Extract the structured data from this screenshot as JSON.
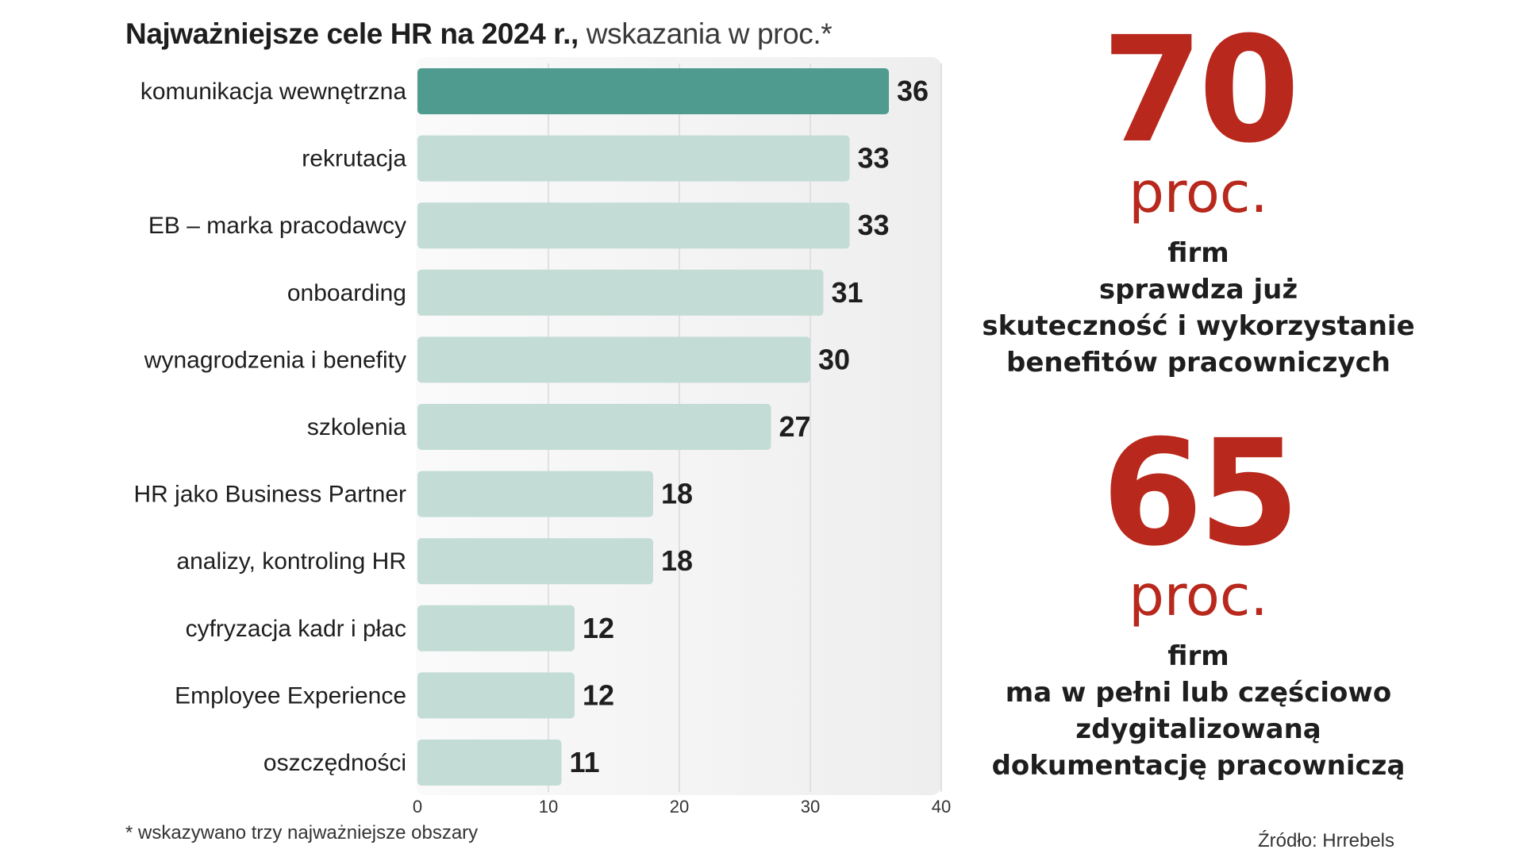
{
  "chart_data": {
    "type": "bar",
    "orientation": "horizontal",
    "title_bold": "Najważniejsze cele HR na 2024 r.,",
    "title_light": " wskazania w proc.*",
    "categories": [
      "komunikacja wewnętrzna",
      "rekrutacja",
      "EB – marka pracodawcy",
      "onboarding",
      "wynagrodzenia i benefity",
      "szkolenia",
      "HR jako Business Partner",
      "analizy, kontroling HR",
      "cyfryzacja kadr i płac",
      "Employee Experience",
      "oszczędności"
    ],
    "values": [
      36,
      33,
      33,
      31,
      30,
      27,
      18,
      18,
      12,
      12,
      11
    ],
    "xlim": [
      0,
      40
    ],
    "xticks": [
      "0",
      "10",
      "20",
      "30",
      "40"
    ],
    "highlight_index": 0,
    "colors": {
      "highlight": "#4f9b8f",
      "bar": "#c3ddd6",
      "panel": "#eeeeee"
    }
  },
  "footnote": "* wskazywano trzy najważniejsze obszary",
  "source": "Źródło: Hrrebels",
  "stats": [
    {
      "number": "70",
      "unit": "proc.",
      "lines": [
        "firm",
        "sprawdza już",
        "skuteczność i  wykorzystanie",
        "benefitów pracowniczych"
      ]
    },
    {
      "number": "65",
      "unit": "proc.",
      "lines": [
        "firm",
        "ma w pełni lub częściowo",
        "zdygitalizowaną",
        "dokumentację pracowniczą"
      ]
    }
  ],
  "accent_color": "#b8281c"
}
